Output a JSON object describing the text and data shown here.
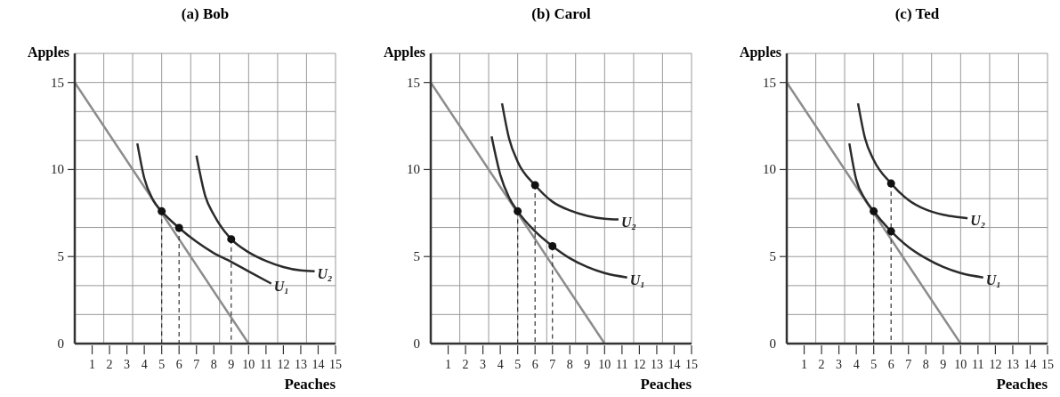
{
  "chart_data": [
    {
      "type": "line",
      "title": "(a) Bob",
      "xlabel": "Peaches",
      "ylabel": "Apples",
      "xlim": [
        0,
        15
      ],
      "ylim": [
        0,
        16.67
      ],
      "xticks": [
        1,
        {
          "value": 1.67,
          "label": null
        },
        2,
        3,
        {
          "value": 3.33,
          "label": null
        },
        4,
        5,
        6,
        {
          "value": 6.67,
          "label": null
        },
        7,
        8,
        {
          "value": 8.33,
          "label": null
        },
        9,
        10,
        11,
        {
          "value": 11.67,
          "label": null
        },
        12,
        13,
        {
          "value": 13.33,
          "label": null
        },
        14,
        15
      ],
      "yticks": [
        0,
        {
          "value": 1.67,
          "label": null
        },
        {
          "value": 3.33,
          "label": null
        },
        5,
        {
          "value": 6.67,
          "label": null
        },
        {
          "value": 8.33,
          "label": null
        },
        10,
        {
          "value": 11.67,
          "label": null
        },
        {
          "value": 13.33,
          "label": null
        },
        15,
        {
          "value": 16.67,
          "label": null
        }
      ],
      "grid": true,
      "series": [
        {
          "type": "line",
          "color": "#8c8c8c",
          "x": [
            0,
            10
          ],
          "values": [
            15,
            0
          ]
        },
        {
          "type": "line",
          "name": "U₁",
          "color": "#2b2b2b",
          "x": [
            3.6,
            4,
            4.5,
            5,
            6,
            7,
            8,
            9,
            10,
            11.3
          ],
          "values": [
            11.5,
            9.5,
            8.25,
            7.6,
            6.65,
            5.85,
            5.2,
            4.7,
            4.15,
            3.45
          ]
        },
        {
          "type": "line",
          "name": "U₂",
          "color": "#2b2b2b",
          "x": [
            7,
            7.5,
            8,
            9,
            10,
            11,
            12,
            13,
            13.8
          ],
          "values": [
            10.8,
            8.5,
            7.4,
            6.0,
            5.25,
            4.75,
            4.4,
            4.2,
            4.15
          ]
        },
        {
          "type": "line",
          "line_style": "dashed",
          "color": "#333333",
          "x": [
            5,
            5
          ],
          "values": [
            7.6,
            0
          ]
        },
        {
          "type": "line",
          "line_style": "dashed",
          "color": "#333333",
          "x": [
            6,
            6
          ],
          "values": [
            6.65,
            0
          ]
        },
        {
          "type": "line",
          "line_style": "dashed",
          "color": "#333333",
          "x": [
            9,
            9
          ],
          "values": [
            6.0,
            0
          ]
        },
        {
          "type": "scatter",
          "marker": "circle",
          "color": "#111111",
          "x": [
            5,
            6,
            9
          ],
          "values": [
            7.6,
            6.65,
            6.0
          ]
        }
      ]
    },
    {
      "type": "line",
      "title": "(b) Carol",
      "xlabel": "Peaches",
      "ylabel": "Apples",
      "xlim": [
        0,
        15
      ],
      "ylim": [
        0,
        16.67
      ],
      "xticks": [
        1,
        {
          "value": 1.67,
          "label": null
        },
        2,
        3,
        {
          "value": 3.33,
          "label": null
        },
        4,
        5,
        6,
        {
          "value": 6.67,
          "label": null
        },
        7,
        8,
        {
          "value": 8.33,
          "label": null
        },
        9,
        10,
        11,
        {
          "value": 11.67,
          "label": null
        },
        12,
        13,
        {
          "value": 13.33,
          "label": null
        },
        14,
        15
      ],
      "yticks": [
        0,
        {
          "value": 1.67,
          "label": null
        },
        {
          "value": 3.33,
          "label": null
        },
        5,
        {
          "value": 6.67,
          "label": null
        },
        {
          "value": 8.33,
          "label": null
        },
        10,
        {
          "value": 11.67,
          "label": null
        },
        {
          "value": 13.33,
          "label": null
        },
        15,
        {
          "value": 16.67,
          "label": null
        }
      ],
      "grid": true,
      "series": [
        {
          "type": "line",
          "color": "#8c8c8c",
          "x": [
            0,
            10
          ],
          "values": [
            15,
            0
          ]
        },
        {
          "type": "line",
          "name": "U₁",
          "color": "#2b2b2b",
          "x": [
            3.5,
            4,
            4.5,
            5,
            6,
            7,
            8,
            9,
            10,
            11.3
          ],
          "values": [
            11.9,
            9.7,
            8.4,
            7.6,
            6.45,
            5.6,
            4.9,
            4.4,
            4.05,
            3.8
          ]
        },
        {
          "type": "line",
          "name": "U₂",
          "color": "#2b2b2b",
          "x": [
            4.1,
            4.5,
            5,
            6,
            7,
            8,
            9,
            10,
            10.8
          ],
          "values": [
            13.8,
            11.8,
            10.45,
            9.1,
            8.15,
            7.65,
            7.34,
            7.17,
            7.13
          ]
        },
        {
          "type": "line",
          "line_style": "dashed",
          "color": "#333333",
          "x": [
            5,
            5
          ],
          "values": [
            7.6,
            0
          ]
        },
        {
          "type": "line",
          "line_style": "dashed",
          "color": "#333333",
          "x": [
            6,
            6
          ],
          "values": [
            9.1,
            0
          ]
        },
        {
          "type": "line",
          "line_style": "dashed",
          "color": "#333333",
          "x": [
            7,
            7
          ],
          "values": [
            5.6,
            0
          ]
        },
        {
          "type": "scatter",
          "marker": "circle",
          "color": "#111111",
          "x": [
            5,
            6,
            7
          ],
          "values": [
            7.6,
            9.1,
            5.6
          ]
        }
      ]
    },
    {
      "type": "line",
      "title": "(c) Ted",
      "xlabel": "Peaches",
      "ylabel": "Apples",
      "xlim": [
        0,
        15
      ],
      "ylim": [
        0,
        16.67
      ],
      "xticks": [
        1,
        {
          "value": 1.67,
          "label": null
        },
        2,
        3,
        {
          "value": 3.33,
          "label": null
        },
        4,
        5,
        6,
        {
          "value": 6.67,
          "label": null
        },
        7,
        8,
        {
          "value": 8.33,
          "label": null
        },
        9,
        10,
        11,
        {
          "value": 11.67,
          "label": null
        },
        12,
        13,
        {
          "value": 13.33,
          "label": null
        },
        14,
        15
      ],
      "yticks": [
        0,
        {
          "value": 1.67,
          "label": null
        },
        {
          "value": 3.33,
          "label": null
        },
        5,
        {
          "value": 6.67,
          "label": null
        },
        {
          "value": 8.33,
          "label": null
        },
        10,
        {
          "value": 11.67,
          "label": null
        },
        {
          "value": 13.33,
          "label": null
        },
        15,
        {
          "value": 16.67,
          "label": null
        }
      ],
      "grid": true,
      "series": [
        {
          "type": "line",
          "color": "#8c8c8c",
          "x": [
            0,
            10
          ],
          "values": [
            15,
            0
          ]
        },
        {
          "type": "line",
          "name": "U₁",
          "color": "#2b2b2b",
          "x": [
            3.6,
            4,
            4.5,
            5,
            6,
            7,
            8,
            9,
            10,
            11.3
          ],
          "values": [
            11.5,
            9.4,
            8.3,
            7.6,
            6.45,
            5.55,
            4.9,
            4.4,
            4.05,
            3.8
          ]
        },
        {
          "type": "line",
          "name": "U₂",
          "color": "#2b2b2b",
          "x": [
            4.1,
            4.5,
            5,
            6,
            7,
            8,
            9,
            10,
            10.4
          ],
          "values": [
            13.8,
            11.8,
            10.55,
            9.2,
            8.25,
            7.7,
            7.4,
            7.25,
            7.2
          ]
        },
        {
          "type": "line",
          "line_style": "dashed",
          "color": "#333333",
          "x": [
            5,
            5
          ],
          "values": [
            7.6,
            0
          ]
        },
        {
          "type": "line",
          "line_style": "dashed",
          "color": "#333333",
          "x": [
            6,
            6
          ],
          "values": [
            9.2,
            0
          ]
        },
        {
          "type": "scatter",
          "marker": "circle",
          "color": "#111111",
          "x": [
            5,
            6,
            6
          ],
          "values": [
            7.6,
            9.2,
            6.45
          ]
        }
      ]
    }
  ]
}
